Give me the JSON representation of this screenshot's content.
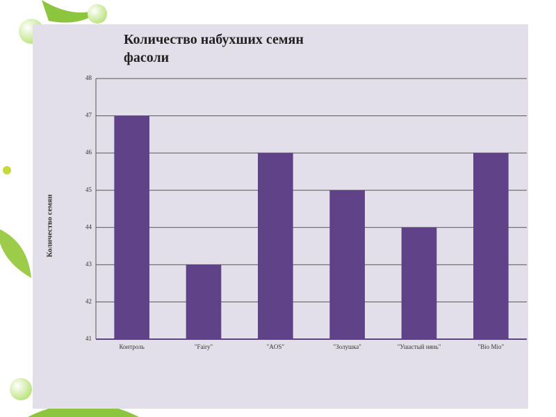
{
  "chart_data": {
    "type": "bar",
    "title": "Количество набухших семян фасоли",
    "y_label": "Количество семян",
    "categories": [
      "Контроль",
      "\"Fairy\"",
      "\"AOS\"",
      "\"Золушка\"",
      "\"Ушастый нянь\"",
      "\"Bio Mio\""
    ],
    "values": [
      47,
      43,
      46,
      45,
      44,
      46
    ],
    "color": "#5f4288",
    "ylim": [
      41,
      48
    ],
    "yticks": [
      41,
      42,
      43,
      44,
      45,
      46,
      47,
      48
    ],
    "grid": true
  }
}
